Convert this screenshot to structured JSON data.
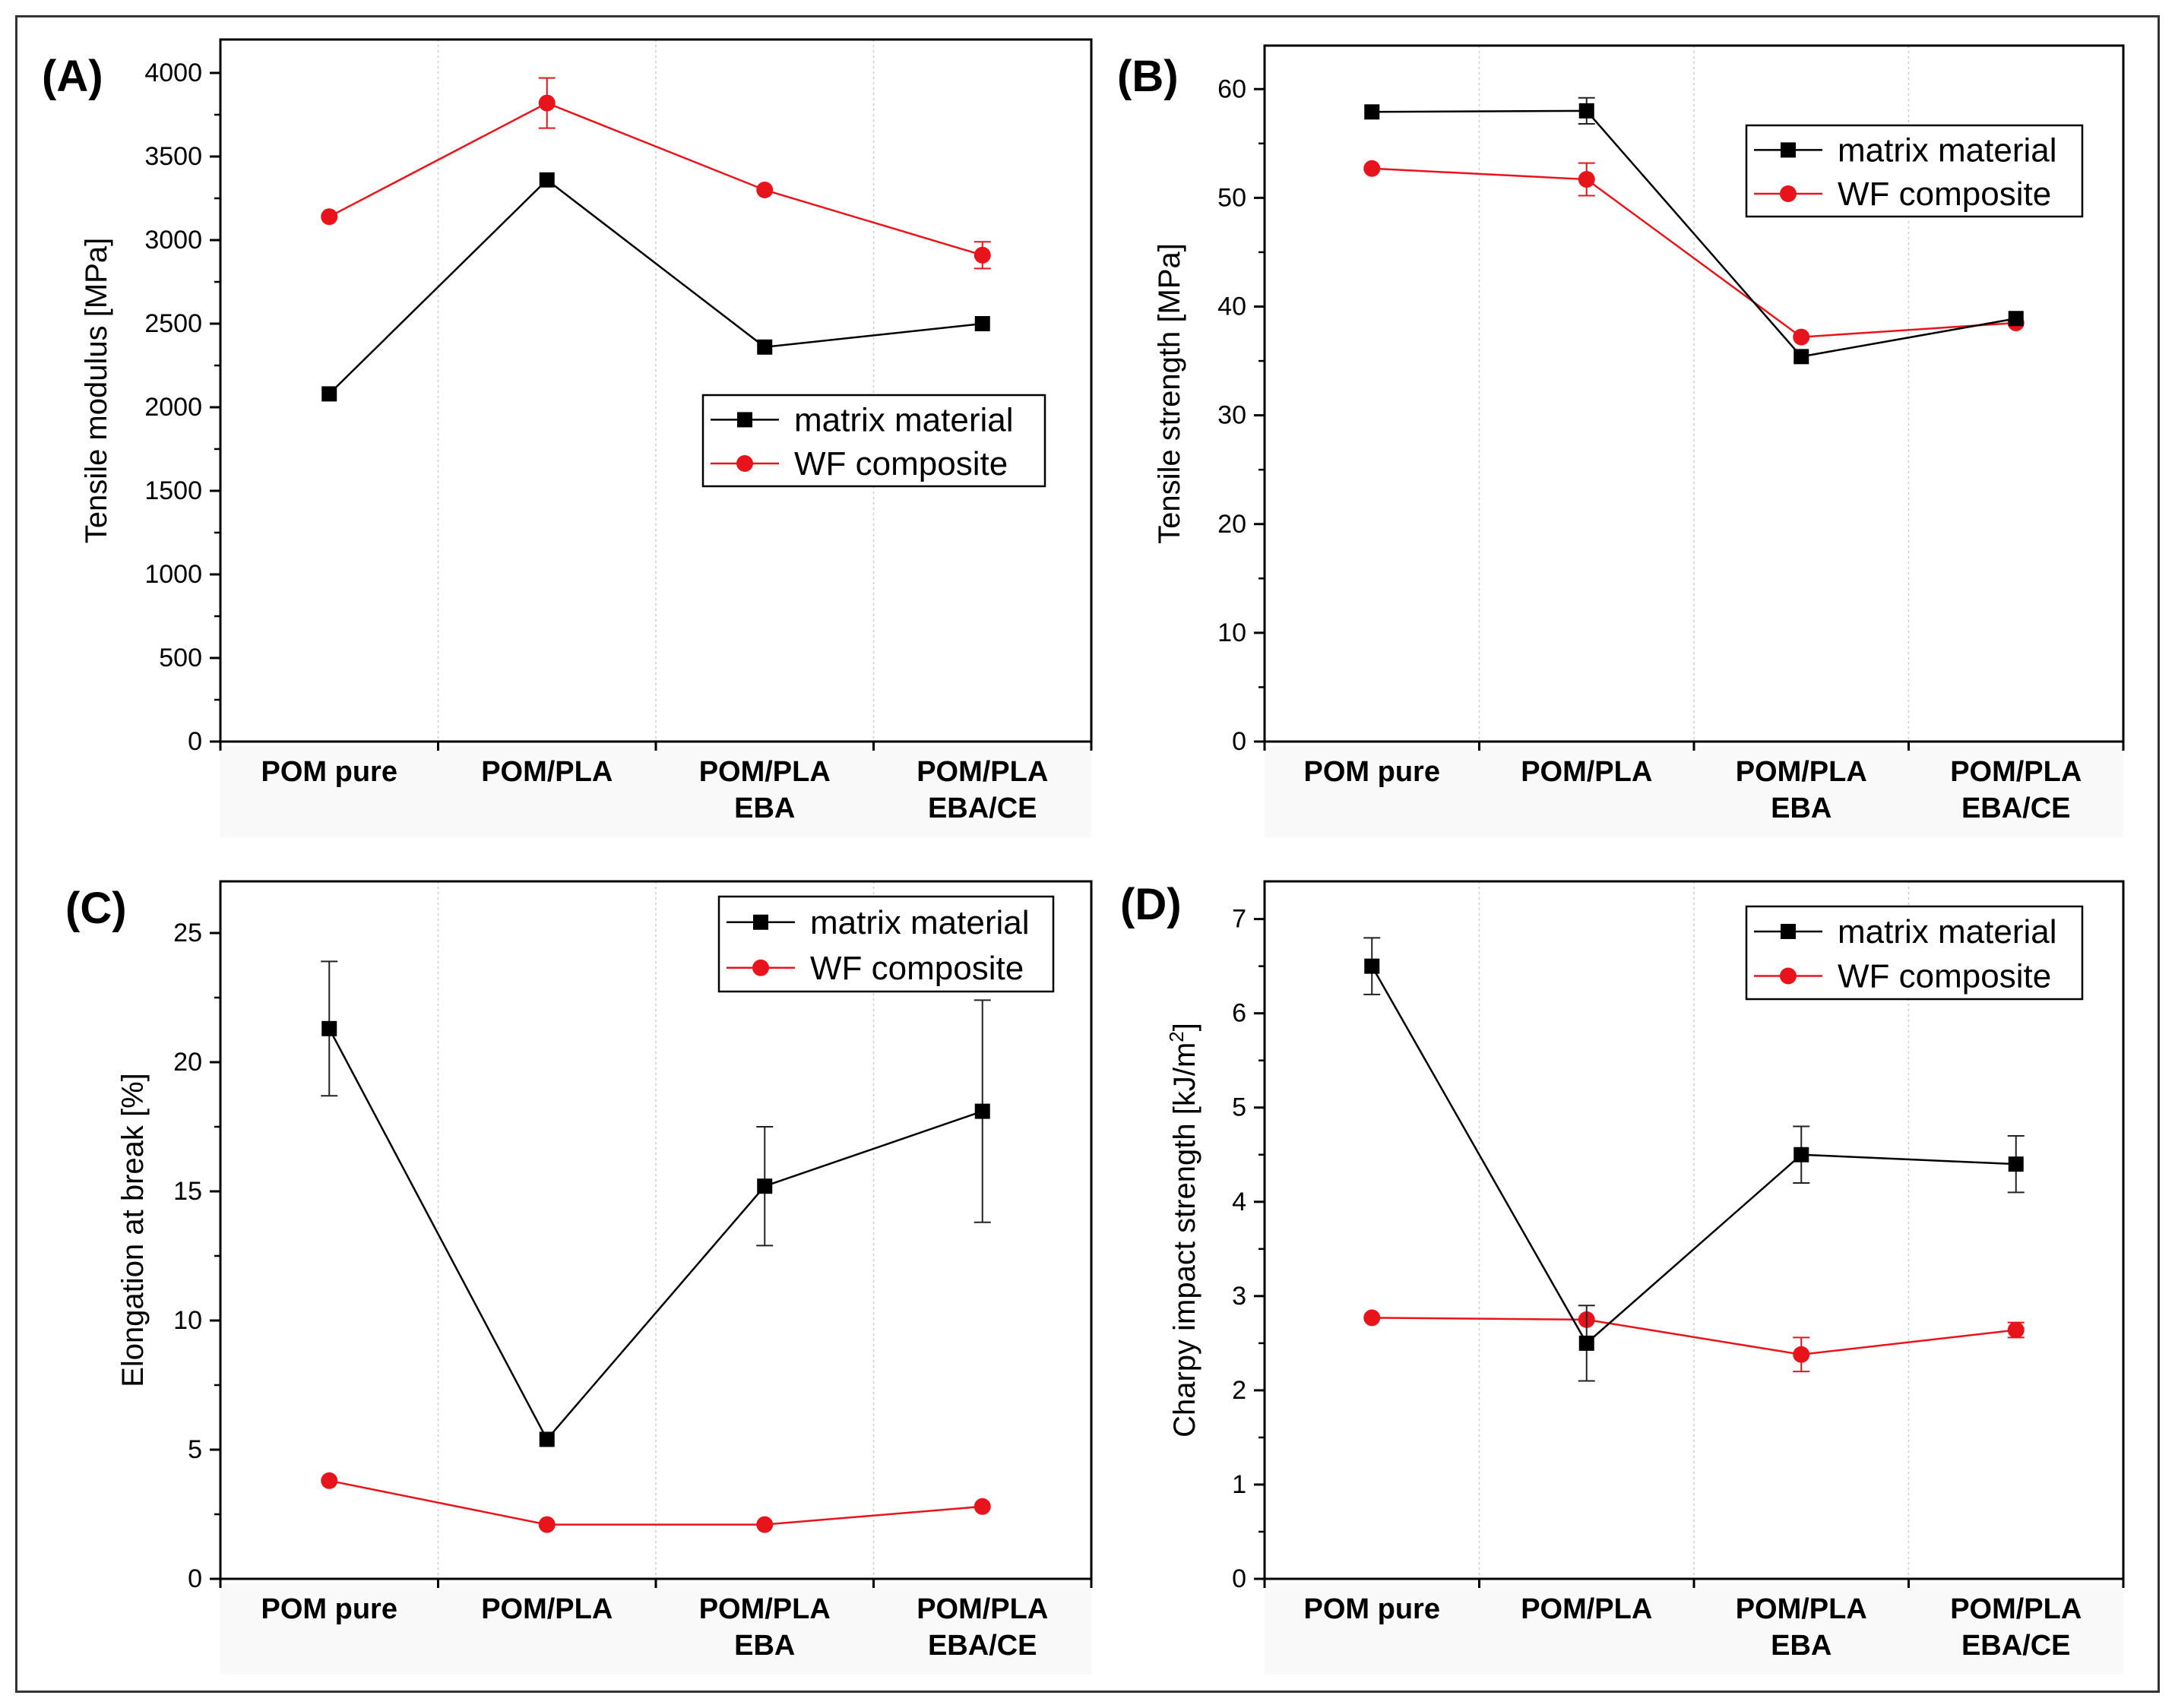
{
  "legend": {
    "matrix": "matrix material",
    "wf": "WF composite"
  },
  "colors": {
    "matrix": "#000000",
    "wf": "#e8141b",
    "errbar_matrix": "#222222",
    "errbar_wf": "#e8141b"
  },
  "categories": [
    [
      "POM pure"
    ],
    [
      "POM/PLA"
    ],
    [
      "POM/PLA",
      "EBA"
    ],
    [
      "POM/PLA",
      "EBA/CE"
    ]
  ],
  "chart_data": [
    {
      "panel": "(A)",
      "type": "line",
      "ylabel": "Tensile modulus [MPa]",
      "ylim": [
        0,
        4200
      ],
      "yticks": [
        0,
        500,
        1000,
        1500,
        2000,
        2500,
        3000,
        3500,
        4000
      ],
      "legend_position": "center-right",
      "categories": [
        "POM pure",
        "POM/PLA",
        "POM/PLA EBA",
        "POM/PLA EBA/CE"
      ],
      "series": [
        {
          "name": "matrix material",
          "values": [
            2080,
            3360,
            2360,
            2500
          ],
          "errors": [
            0,
            0,
            0,
            0
          ]
        },
        {
          "name": "WF composite",
          "values": [
            3140,
            3820,
            3300,
            2910
          ],
          "errors": [
            0,
            150,
            0,
            80
          ]
        }
      ]
    },
    {
      "panel": "(B)",
      "type": "line",
      "ylabel": "Tensile strength [MPa]",
      "ylim": [
        0,
        64
      ],
      "yticks": [
        0,
        10,
        20,
        30,
        40,
        50,
        60
      ],
      "legend_position": "top-right",
      "categories": [
        "POM pure",
        "POM/PLA",
        "POM/PLA EBA",
        "POM/PLA EBA/CE"
      ],
      "series": [
        {
          "name": "matrix material",
          "values": [
            57.9,
            58.0,
            35.4,
            38.9
          ],
          "errors": [
            0,
            1.2,
            0,
            0
          ]
        },
        {
          "name": "WF composite",
          "values": [
            52.7,
            51.7,
            37.2,
            38.5
          ],
          "errors": [
            0,
            1.5,
            0,
            0
          ]
        }
      ]
    },
    {
      "panel": "(C)",
      "type": "line",
      "ylabel": "Elongation at break [%]",
      "ylim": [
        0,
        27
      ],
      "yticks": [
        0,
        5,
        10,
        15,
        20,
        25
      ],
      "legend_position": "top-right",
      "categories": [
        "POM pure",
        "POM/PLA",
        "POM/PLA EBA",
        "POM/PLA EBA/CE"
      ],
      "series": [
        {
          "name": "matrix material",
          "values": [
            21.3,
            5.4,
            15.2,
            18.1
          ],
          "errors": [
            2.6,
            0,
            2.3,
            4.3
          ]
        },
        {
          "name": "WF composite",
          "values": [
            3.8,
            2.1,
            2.1,
            2.8
          ],
          "errors": [
            0,
            0,
            0,
            0
          ]
        }
      ]
    },
    {
      "panel": "(D)",
      "type": "line",
      "ylabel": "Charpy impact strength [kJ/m²]",
      "ylim": [
        0,
        7.4
      ],
      "yticks": [
        0,
        1,
        2,
        3,
        4,
        5,
        6,
        7
      ],
      "legend_position": "top-right",
      "categories": [
        "POM pure",
        "POM/PLA",
        "POM/PLA EBA",
        "POM/PLA EBA/CE"
      ],
      "series": [
        {
          "name": "matrix material",
          "values": [
            6.5,
            2.5,
            4.5,
            4.4
          ],
          "errors": [
            0.3,
            0.4,
            0.3,
            0.3
          ]
        },
        {
          "name": "WF composite",
          "values": [
            2.77,
            2.75,
            2.38,
            2.64
          ],
          "errors": [
            0,
            0,
            0.18,
            0.08
          ]
        }
      ]
    }
  ]
}
